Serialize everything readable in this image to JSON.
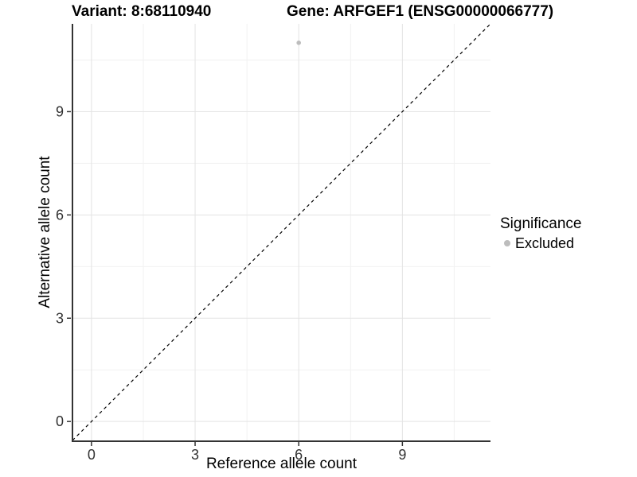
{
  "chart_data": {
    "type": "scatter",
    "title_left": "Variant: 8:68110940",
    "title_right": "Gene: ARFGEF1 (ENSG00000066777)",
    "xlabel": "Reference allele count",
    "ylabel": "Alternative allele count",
    "xlim": [
      -0.55,
      11.55
    ],
    "ylim": [
      -0.55,
      11.55
    ],
    "x_ticks": [
      0,
      3,
      6,
      9
    ],
    "y_ticks": [
      0,
      3,
      6,
      9
    ],
    "x_tick_labels": [
      "0",
      "3",
      "6",
      "9"
    ],
    "y_tick_labels": [
      "0",
      "3",
      "6",
      "9"
    ],
    "x_minor_ticks": [
      1.5,
      4.5,
      7.5,
      10.5
    ],
    "y_minor_ticks": [
      1.5,
      4.5,
      7.5,
      10.5
    ],
    "grid": true,
    "points": [
      {
        "x": 6,
        "y": 11,
        "significance": "Excluded"
      }
    ],
    "reference_line": {
      "kind": "identity",
      "style": "dashed",
      "x1": -0.55,
      "y1": -0.55,
      "x2": 11.55,
      "y2": 11.55
    },
    "legend": {
      "title": "Significance",
      "position": "right",
      "entries": [
        {
          "label": "Excluded",
          "color": "#bdbdbd"
        }
      ]
    },
    "colors": {
      "point": "#bdbdbd",
      "grid_major": "#e3e3e3",
      "grid_minor": "#f1f1f1",
      "axis": "#333333",
      "tick_text": "#333333",
      "reference_line": "#000000",
      "background": "#ffffff"
    }
  }
}
